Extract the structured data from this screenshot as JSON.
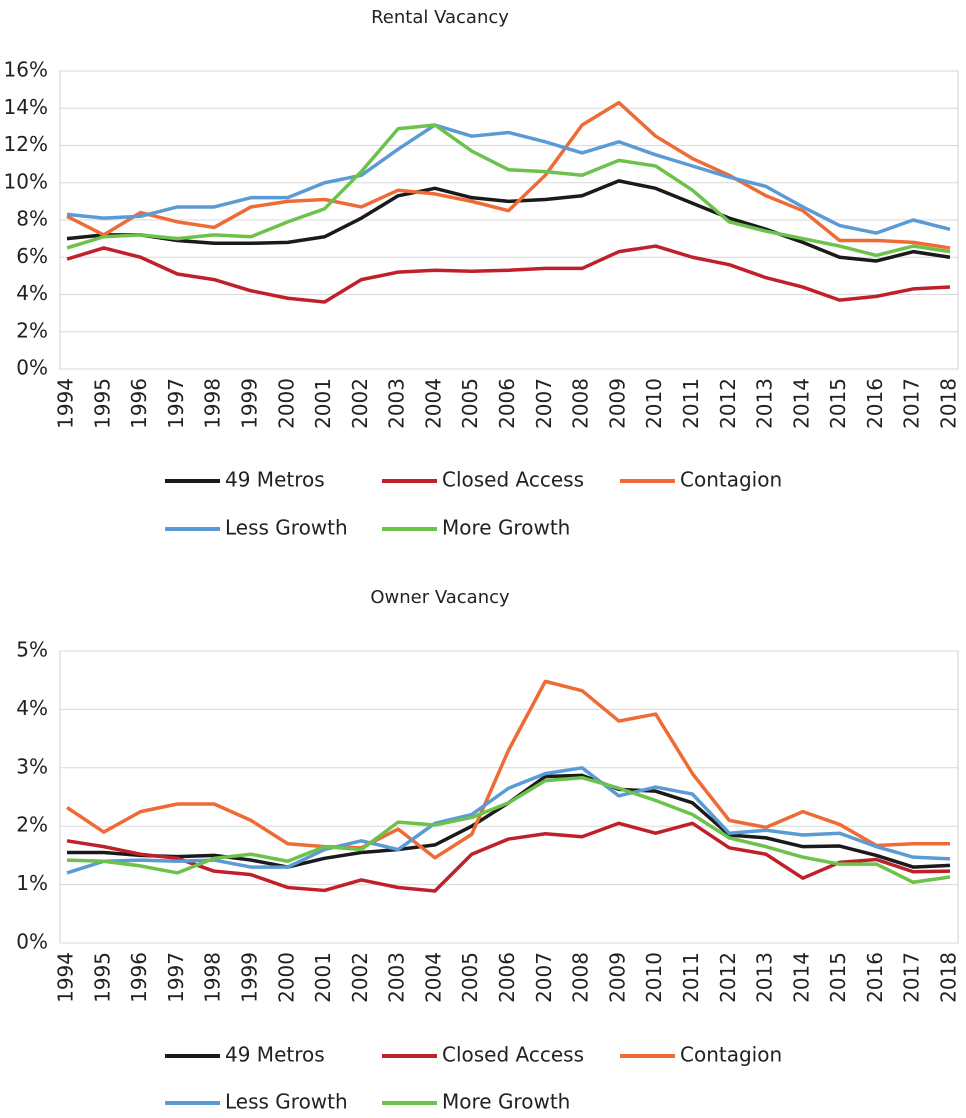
{
  "chart_data": [
    {
      "type": "line",
      "title": "Rental Vacancy",
      "categories": [
        "1994",
        "1995",
        "1996",
        "1997",
        "1998",
        "1999",
        "2000",
        "2001",
        "2002",
        "2003",
        "2004",
        "2005",
        "2006",
        "2007",
        "2008",
        "2009",
        "2010",
        "2011",
        "2012",
        "2013",
        "2014",
        "2015",
        "2016",
        "2017",
        "2018"
      ],
      "ylim": [
        0,
        16
      ],
      "yticks": [
        {
          "value": 0,
          "label": "0%"
        },
        {
          "value": 2,
          "label": "2%"
        },
        {
          "value": 4,
          "label": "4%"
        },
        {
          "value": 6,
          "label": "6%"
        },
        {
          "value": 8,
          "label": "8%"
        },
        {
          "value": 10,
          "label": "10%"
        },
        {
          "value": 12,
          "label": "12%"
        },
        {
          "value": 14,
          "label": "14%"
        },
        {
          "value": 16,
          "label": "16%"
        }
      ],
      "grid": true,
      "series": [
        {
          "name": "49 Metros",
          "color": "#1a1a1a",
          "values": [
            7.0,
            7.2,
            7.2,
            6.9,
            6.75,
            6.75,
            6.8,
            7.1,
            8.1,
            9.3,
            9.7,
            9.2,
            9.0,
            9.1,
            9.3,
            10.1,
            9.7,
            8.9,
            8.1,
            7.5,
            6.8,
            6.0,
            5.8,
            6.3,
            6.0
          ]
        },
        {
          "name": "Closed Access",
          "color": "#c0202a",
          "values": [
            5.9,
            6.5,
            6.0,
            5.1,
            4.8,
            4.2,
            3.8,
            3.6,
            4.8,
            5.2,
            5.3,
            5.25,
            5.3,
            5.4,
            5.4,
            6.3,
            6.6,
            6.0,
            5.6,
            4.9,
            4.4,
            3.7,
            3.9,
            4.3,
            4.4
          ]
        },
        {
          "name": "Contagion",
          "color": "#ef6b35",
          "values": [
            8.2,
            7.2,
            8.4,
            7.9,
            7.6,
            8.7,
            9.0,
            9.1,
            8.7,
            9.6,
            9.4,
            9.0,
            8.5,
            10.4,
            13.1,
            14.3,
            12.5,
            11.3,
            10.4,
            9.3,
            8.5,
            6.9,
            6.9,
            6.8,
            6.5
          ]
        },
        {
          "name": "Less Growth",
          "color": "#5b9bd5",
          "values": [
            8.3,
            8.1,
            8.2,
            8.7,
            8.7,
            9.2,
            9.2,
            10.0,
            10.4,
            11.8,
            13.1,
            12.5,
            12.7,
            12.2,
            11.6,
            12.2,
            11.5,
            10.9,
            10.3,
            9.8,
            8.7,
            7.7,
            7.3,
            8.0,
            7.5
          ]
        },
        {
          "name": "More Growth",
          "color": "#6cc24a",
          "values": [
            6.5,
            7.1,
            7.2,
            7.0,
            7.2,
            7.1,
            7.9,
            8.6,
            10.6,
            12.9,
            13.1,
            11.7,
            10.7,
            10.6,
            10.4,
            11.2,
            10.9,
            9.6,
            7.9,
            7.4,
            7.0,
            6.6,
            6.1,
            6.6,
            6.3
          ]
        }
      ]
    },
    {
      "type": "line",
      "title": "Owner Vacancy",
      "categories": [
        "1994",
        "1995",
        "1996",
        "1997",
        "1998",
        "1999",
        "2000",
        "2001",
        "2002",
        "2003",
        "2004",
        "2005",
        "2006",
        "2007",
        "2008",
        "2009",
        "2010",
        "2011",
        "2012",
        "2013",
        "2014",
        "2015",
        "2016",
        "2017",
        "2018"
      ],
      "ylim": [
        0,
        5
      ],
      "yticks": [
        {
          "value": 0,
          "label": "0%"
        },
        {
          "value": 1,
          "label": "1%"
        },
        {
          "value": 2,
          "label": "2%"
        },
        {
          "value": 3,
          "label": "3%"
        },
        {
          "value": 4,
          "label": "4%"
        },
        {
          "value": 5,
          "label": "5%"
        }
      ],
      "grid": true,
      "series": [
        {
          "name": "49 Metros",
          "color": "#1a1a1a",
          "values": [
            1.55,
            1.55,
            1.5,
            1.48,
            1.5,
            1.42,
            1.3,
            1.45,
            1.55,
            1.6,
            1.68,
            2.0,
            2.4,
            2.85,
            2.87,
            2.63,
            2.6,
            2.4,
            1.85,
            1.8,
            1.65,
            1.66,
            1.5,
            1.3,
            1.33
          ]
        },
        {
          "name": "Closed Access",
          "color": "#c0202a",
          "values": [
            1.75,
            1.65,
            1.52,
            1.45,
            1.23,
            1.17,
            0.95,
            0.9,
            1.08,
            0.95,
            0.89,
            1.52,
            1.78,
            1.87,
            1.82,
            2.05,
            1.88,
            2.05,
            1.63,
            1.52,
            1.11,
            1.38,
            1.43,
            1.22,
            1.23
          ]
        },
        {
          "name": "Contagion",
          "color": "#ef6b35",
          "values": [
            2.32,
            1.9,
            2.25,
            2.38,
            2.38,
            2.1,
            1.7,
            1.65,
            1.63,
            1.95,
            1.46,
            1.86,
            3.3,
            4.48,
            4.32,
            3.8,
            3.92,
            2.9,
            2.1,
            1.98,
            2.25,
            2.03,
            1.67,
            1.7,
            1.7
          ]
        },
        {
          "name": "Less Growth",
          "color": "#5b9bd5",
          "values": [
            1.2,
            1.4,
            1.42,
            1.4,
            1.42,
            1.3,
            1.3,
            1.6,
            1.75,
            1.6,
            2.05,
            2.2,
            2.65,
            2.9,
            3.0,
            2.52,
            2.67,
            2.55,
            1.88,
            1.93,
            1.85,
            1.88,
            1.65,
            1.47,
            1.44
          ]
        },
        {
          "name": "More Growth",
          "color": "#6cc24a",
          "values": [
            1.42,
            1.4,
            1.32,
            1.2,
            1.45,
            1.52,
            1.4,
            1.65,
            1.6,
            2.07,
            2.02,
            2.15,
            2.4,
            2.78,
            2.83,
            2.65,
            2.44,
            2.2,
            1.8,
            1.65,
            1.47,
            1.35,
            1.35,
            1.04,
            1.13
          ]
        }
      ]
    }
  ]
}
